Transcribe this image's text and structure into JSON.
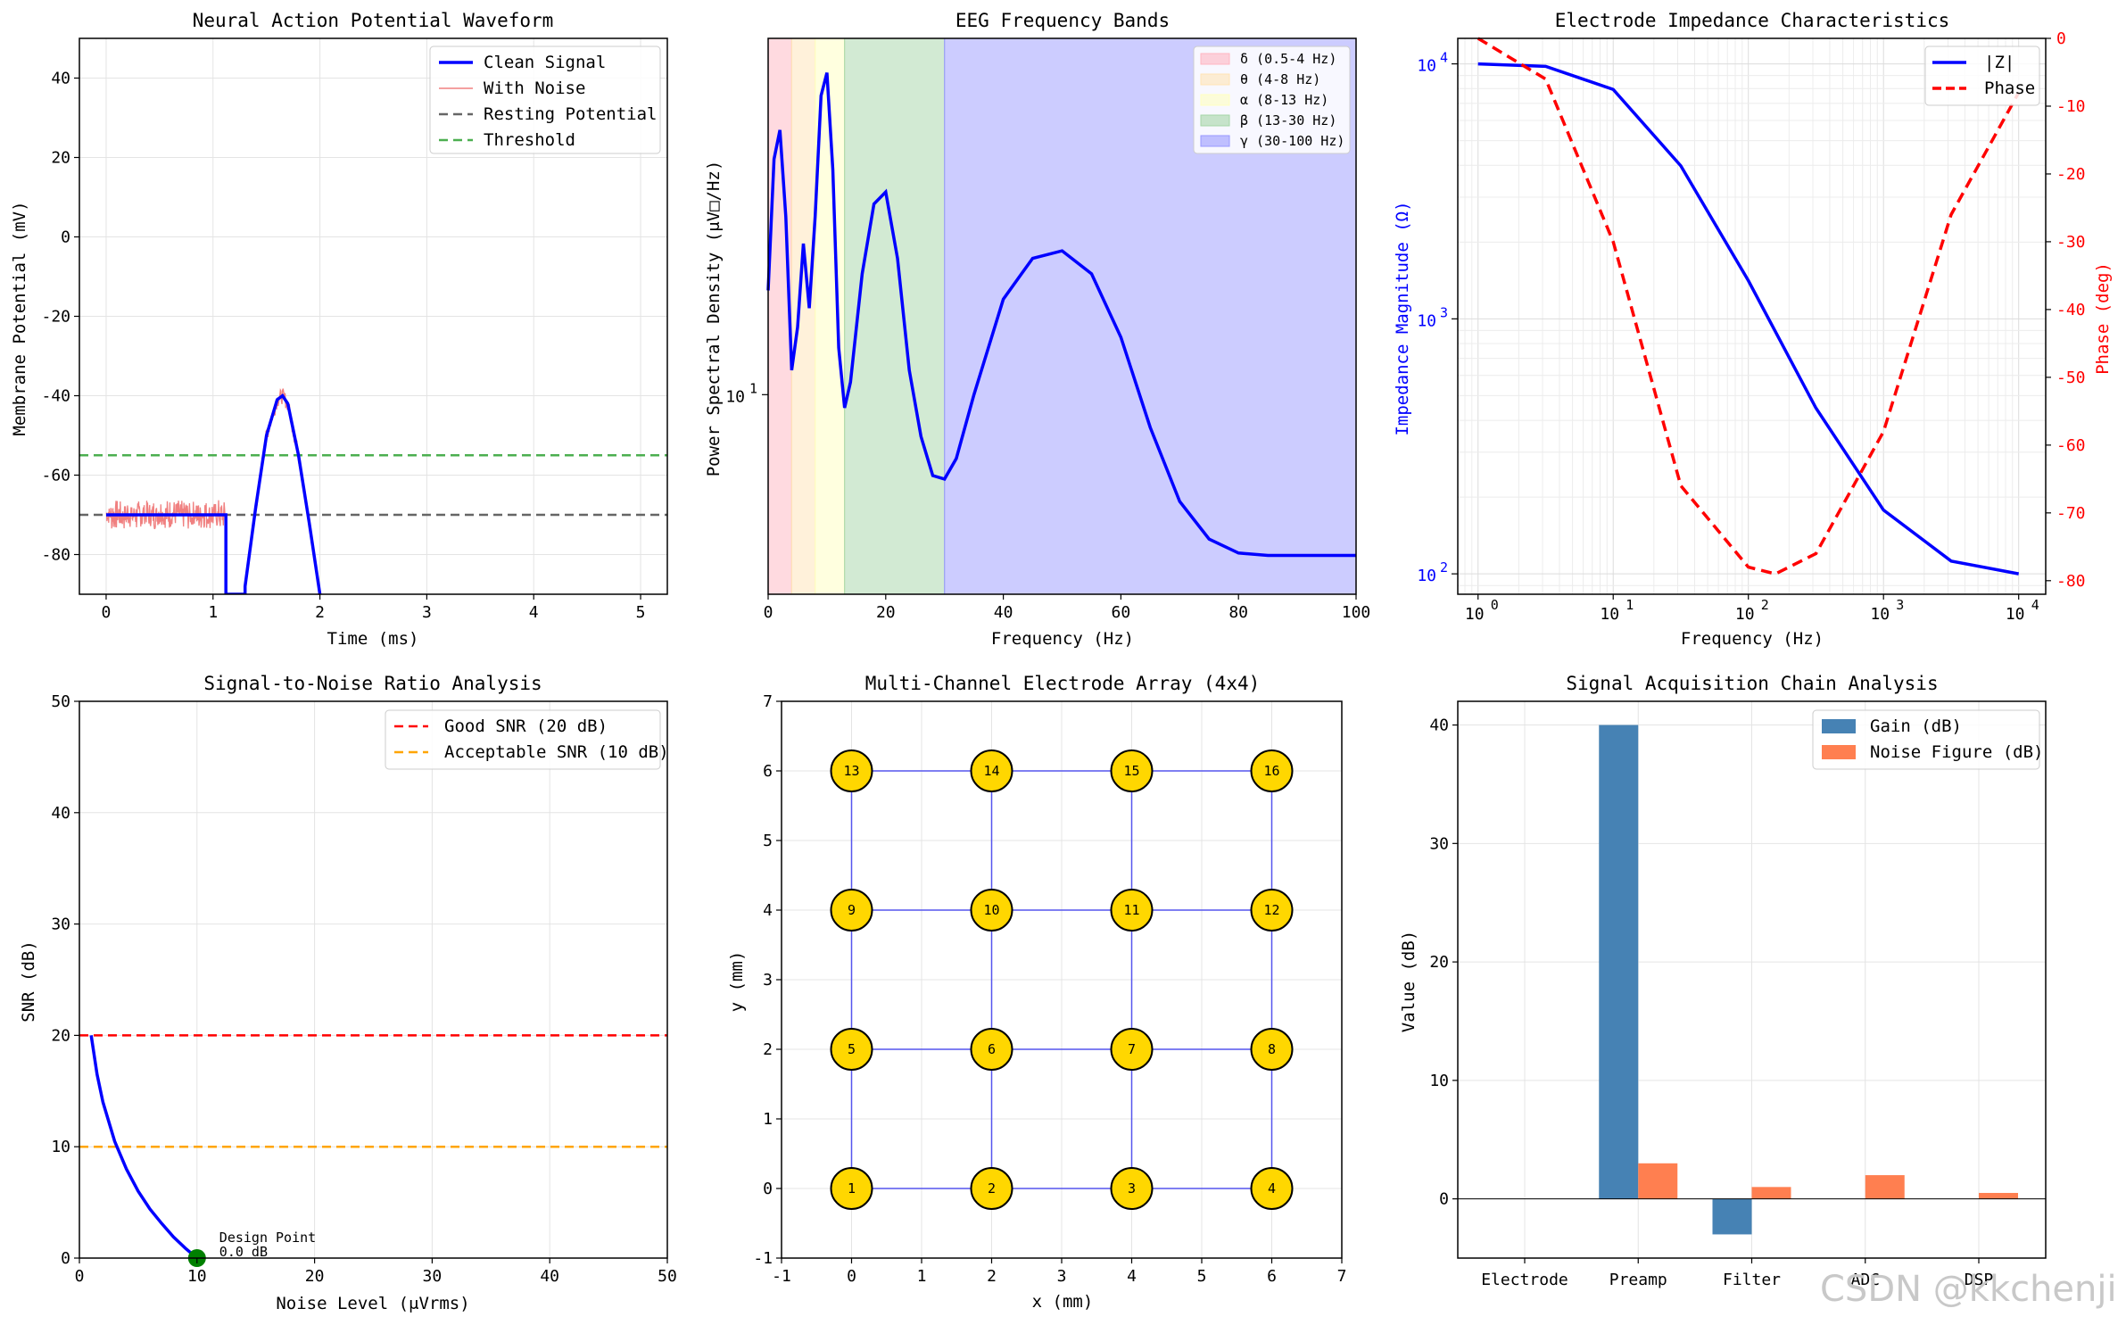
{
  "watermark": "CSDN @kkchenji",
  "colors": {
    "blue": "#0000ff",
    "red": "#ff0000",
    "noise": "#f08080",
    "gray": "#666666",
    "green_dash": "#4caf50",
    "orange": "#ffa500",
    "gold": "#ffd700",
    "steelblue": "#4682b4",
    "coral": "#ff7f50",
    "grid": "#e4e4e4"
  },
  "chart_data": [
    {
      "id": "ap",
      "type": "line",
      "title": "Neural Action Potential Waveform",
      "xlabel": "Time (ms)",
      "ylabel": "Membrane Potential (mV)",
      "xlim": [
        -0.25,
        5.25
      ],
      "ylim": [
        -90,
        50
      ],
      "xticks": [
        0,
        1,
        2,
        3,
        4,
        5
      ],
      "yticks": [
        -80,
        -60,
        -40,
        -20,
        0,
        20,
        40
      ],
      "resting_potential": -70,
      "threshold": -55,
      "series": [
        {
          "name": "Clean Signal",
          "style": "solid-thick",
          "x": [
            0,
            1.12,
            1.12,
            1.3,
            1.3,
            1.4,
            1.5,
            1.6,
            1.65,
            1.7,
            1.8,
            1.9,
            2.0
          ],
          "y": [
            -70,
            -70,
            -90,
            -90,
            -88,
            -68,
            -50,
            -41,
            -40,
            -42,
            -55,
            -72,
            -90
          ]
        },
        {
          "name": "With Noise",
          "style": "thin"
        },
        {
          "name": "Resting Potential",
          "style": "dash"
        },
        {
          "name": "Threshold",
          "style": "dash"
        }
      ]
    },
    {
      "id": "eeg",
      "type": "line",
      "title": "EEG Frequency Bands",
      "xlabel": "Frequency (Hz)",
      "ylabel": "Power Spectral Density (μV□/Hz)",
      "xlim": [
        0,
        100
      ],
      "yscale": "log",
      "ylim": [
        4.6,
        40
      ],
      "xticks": [
        0,
        20,
        40,
        60,
        80,
        100
      ],
      "ytick_label": "10",
      "ytick_sup": "1",
      "ytick_value": 10,
      "bands": [
        {
          "name": "δ (0.5-4 Hz)",
          "from": 0,
          "to": 4,
          "color": "#ffb6c1"
        },
        {
          "name": "θ (4-8 Hz)",
          "from": 4,
          "to": 8,
          "color": "#ffe4b5"
        },
        {
          "name": "α (8-13 Hz)",
          "from": 8,
          "to": 13,
          "color": "#ffffc0"
        },
        {
          "name": "β (13-30 Hz)",
          "from": 13,
          "to": 30,
          "color": "#a5d6a7"
        },
        {
          "name": "γ (30-100 Hz)",
          "from": 30,
          "to": 100,
          "color": "#9999ff"
        }
      ],
      "psd": {
        "x": [
          0,
          1,
          2,
          3,
          4,
          5,
          6,
          7,
          8,
          9,
          10,
          11,
          12,
          13,
          14,
          16,
          18,
          20,
          22,
          24,
          26,
          28,
          30,
          32,
          35,
          40,
          45,
          50,
          55,
          60,
          65,
          70,
          75,
          80,
          85,
          90,
          95,
          100
        ],
        "y": [
          15,
          25,
          28,
          20,
          11,
          13,
          18,
          14,
          20,
          32,
          35,
          24,
          12,
          9.5,
          10.5,
          16,
          21,
          22,
          17,
          11,
          8.5,
          7.3,
          7.2,
          7.8,
          10,
          14.5,
          17,
          17.5,
          16,
          12.5,
          8.8,
          6.6,
          5.7,
          5.4,
          5.35,
          5.35,
          5.35,
          5.35
        ]
      }
    },
    {
      "id": "imp",
      "type": "line",
      "title": "Electrode Impedance Characteristics",
      "xlabel": "Frequency (Hz)",
      "ylabel": "Impedance Magnitude (Ω)",
      "ylabel2": "Phase (deg)",
      "xscale": "log",
      "yscale": "log",
      "xlim_log10": [
        -0.15,
        4.2
      ],
      "ylim_log10": [
        1.92,
        4.1
      ],
      "y2lim": [
        -82,
        0
      ],
      "xticks_log10": [
        0,
        1,
        2,
        3,
        4
      ],
      "yticks_log10": [
        2,
        3,
        4
      ],
      "y2ticks": [
        0,
        -10,
        -20,
        -30,
        -40,
        -50,
        -60,
        -70,
        -80
      ],
      "series": [
        {
          "name": "|Z|",
          "axis": "left",
          "log10_f": [
            0,
            0.5,
            1,
            1.5,
            2,
            2.5,
            3,
            3.5,
            4
          ],
          "log10_z": [
            4.0,
            3.99,
            3.9,
            3.6,
            3.15,
            2.65,
            2.25,
            2.05,
            2.0
          ]
        },
        {
          "name": "Phase",
          "axis": "right",
          "log10_f": [
            0,
            0.5,
            1,
            1.5,
            2,
            2.2,
            2.5,
            3,
            3.5,
            4
          ],
          "phase": [
            0,
            -6,
            -30,
            -66,
            -78,
            -79,
            -76,
            -58,
            -26,
            -8
          ]
        }
      ]
    },
    {
      "id": "snr",
      "type": "line",
      "title": "Signal-to-Noise Ratio Analysis",
      "xlabel": "Noise Level (μVrms)",
      "ylabel": "SNR (dB)",
      "xlim": [
        0,
        50
      ],
      "ylim": [
        0,
        50
      ],
      "xticks": [
        0,
        10,
        20,
        30,
        40,
        50
      ],
      "yticks": [
        0,
        10,
        20,
        30,
        40,
        50
      ],
      "good_snr": 20,
      "acceptable_snr": 10,
      "series": [
        {
          "name": "SNR curve",
          "x": [
            1,
            1.5,
            2,
            3,
            4,
            5,
            6,
            7,
            8,
            9,
            10
          ],
          "y": [
            20,
            16.5,
            14,
            10.5,
            8,
            6,
            4.4,
            3.1,
            1.9,
            0.9,
            0
          ]
        },
        {
          "name": "Good SNR (20 dB)"
        },
        {
          "name": "Acceptable SNR (10 dB)"
        }
      ],
      "design_point": {
        "x": 10,
        "y": 0,
        "label": "Design Point",
        "value_label": "0.0 dB"
      }
    },
    {
      "id": "array",
      "type": "scatter",
      "title": "Multi-Channel Electrode Array (4x4)",
      "xlabel": "x (mm)",
      "ylabel": "y (mm)",
      "xlim": [
        -1,
        7
      ],
      "ylim": [
        -1,
        7
      ],
      "xticks": [
        -1,
        0,
        1,
        2,
        3,
        4,
        5,
        6,
        7
      ],
      "yticks": [
        -1,
        0,
        1,
        2,
        3,
        4,
        5,
        6,
        7
      ],
      "electrodes": [
        {
          "id": "1",
          "x": 0,
          "y": 0
        },
        {
          "id": "2",
          "x": 2,
          "y": 0
        },
        {
          "id": "3",
          "x": 4,
          "y": 0
        },
        {
          "id": "4",
          "x": 6,
          "y": 0
        },
        {
          "id": "5",
          "x": 0,
          "y": 2
        },
        {
          "id": "6",
          "x": 2,
          "y": 2
        },
        {
          "id": "7",
          "x": 4,
          "y": 2
        },
        {
          "id": "8",
          "x": 6,
          "y": 2
        },
        {
          "id": "9",
          "x": 0,
          "y": 4
        },
        {
          "id": "10",
          "x": 2,
          "y": 4
        },
        {
          "id": "11",
          "x": 4,
          "y": 4
        },
        {
          "id": "12",
          "x": 6,
          "y": 4
        },
        {
          "id": "13",
          "x": 0,
          "y": 6
        },
        {
          "id": "14",
          "x": 2,
          "y": 6
        },
        {
          "id": "15",
          "x": 4,
          "y": 6
        },
        {
          "id": "16",
          "x": 6,
          "y": 6
        }
      ]
    },
    {
      "id": "chain",
      "type": "bar",
      "title": "Signal Acquisition Chain Analysis",
      "xlabel": "",
      "ylabel": "Value (dB)",
      "ylim": [
        -5,
        42
      ],
      "yticks": [
        0,
        10,
        20,
        30,
        40
      ],
      "categories": [
        "Electrode",
        "Preamp",
        "Filter",
        "ADC",
        "DSP"
      ],
      "series": [
        {
          "name": "Gain (dB)",
          "values": [
            0,
            40,
            -3,
            0,
            0
          ]
        },
        {
          "name": "Noise Figure (dB)",
          "values": [
            0,
            3,
            1,
            2,
            0.5
          ]
        }
      ]
    }
  ]
}
